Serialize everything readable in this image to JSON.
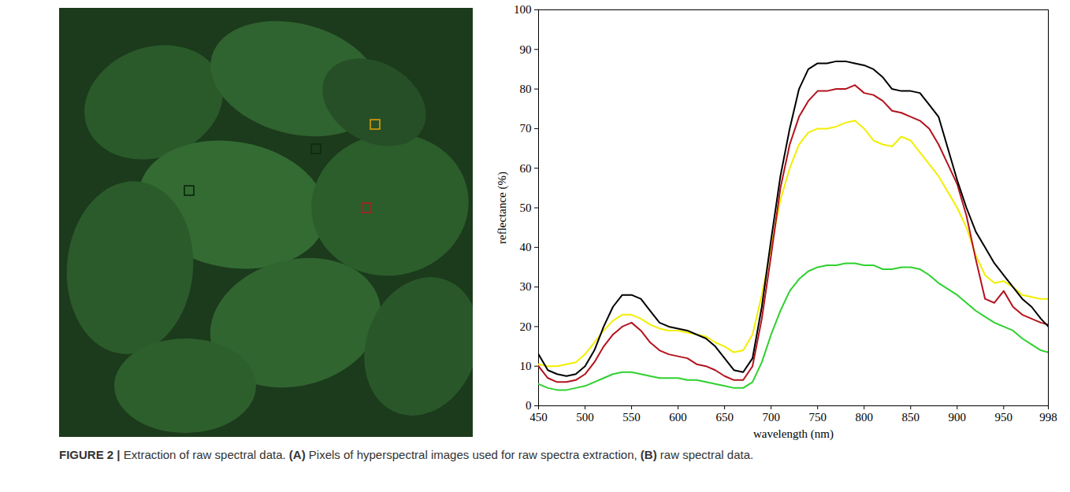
{
  "chart_data": {
    "type": "line",
    "x_label": "wavelength (nm)",
    "y_label": "reflectance (%)",
    "x": [
      450,
      460,
      470,
      480,
      490,
      500,
      510,
      520,
      530,
      540,
      550,
      560,
      570,
      580,
      590,
      600,
      610,
      620,
      630,
      640,
      650,
      660,
      670,
      680,
      690,
      700,
      710,
      720,
      730,
      740,
      750,
      760,
      770,
      780,
      790,
      800,
      810,
      820,
      830,
      840,
      850,
      860,
      870,
      880,
      890,
      900,
      910,
      920,
      930,
      940,
      950,
      960,
      970,
      980,
      990,
      998
    ],
    "xlim": [
      450,
      998
    ],
    "xticks": [
      450,
      500,
      550,
      600,
      650,
      700,
      750,
      800,
      850,
      900,
      950,
      998
    ],
    "ylim": [
      0,
      100
    ],
    "yticks": [
      0,
      10,
      20,
      30,
      40,
      50,
      60,
      70,
      80,
      90,
      100
    ],
    "grid": false,
    "series": [
      {
        "color": "#2ed12e",
        "values": [
          5.5,
          4.5,
          4,
          4,
          4.5,
          5,
          6,
          7,
          8,
          8.5,
          8.5,
          8,
          7.5,
          7,
          7,
          7,
          6.5,
          6.5,
          6,
          5.5,
          5,
          4.5,
          4.5,
          6,
          11,
          18,
          24,
          29,
          32,
          34,
          35,
          35.5,
          35.5,
          36,
          36,
          35.5,
          35.5,
          34.5,
          34.5,
          35,
          35,
          34.5,
          33,
          31,
          29.5,
          28,
          26,
          24,
          22.5,
          21,
          20,
          19,
          17,
          15.5,
          14,
          13.5
        ]
      },
      {
        "color": "#f2ee00",
        "values": [
          10.5,
          10,
          10,
          10.5,
          11,
          13,
          16,
          19,
          21.5,
          23,
          23,
          22,
          20.5,
          19.5,
          19,
          19,
          18.5,
          18,
          17.5,
          16,
          15,
          13.5,
          14,
          18,
          28,
          40,
          52,
          60,
          66,
          69,
          70,
          70,
          70.5,
          71.5,
          72,
          70,
          67,
          66,
          65.5,
          68,
          67,
          64,
          61,
          58,
          54,
          50,
          45,
          38,
          33,
          31,
          31.5,
          30,
          28,
          27.5,
          27,
          27
        ]
      },
      {
        "color": "#b3121c",
        "values": [
          10,
          7,
          6,
          6,
          6.5,
          8,
          11,
          15,
          18,
          20,
          21,
          19,
          16,
          14,
          13,
          12.5,
          12,
          10.5,
          10,
          9,
          7.5,
          6.5,
          6.5,
          10,
          22,
          38,
          55,
          66,
          73,
          77,
          79.5,
          79.5,
          80,
          80,
          81,
          79,
          78.5,
          77,
          74.5,
          74,
          73,
          72,
          70,
          66,
          61,
          56,
          48,
          37,
          27,
          26,
          29,
          25,
          23,
          22,
          21,
          20.5
        ]
      },
      {
        "color": "#000000",
        "values": [
          13,
          9,
          8,
          7.5,
          8,
          10,
          14,
          20,
          25,
          28,
          28,
          27,
          24,
          21,
          20,
          19.5,
          19,
          18,
          17,
          15,
          12,
          9,
          8.5,
          12,
          25,
          42,
          58,
          70,
          80,
          85,
          86.5,
          86.5,
          87,
          87,
          86.5,
          86,
          85,
          83,
          80,
          79.5,
          79.5,
          79,
          76,
          73,
          65,
          57,
          50,
          44,
          40,
          36,
          33,
          30,
          27,
          25,
          22,
          20
        ]
      }
    ]
  },
  "caption": [
    "FIGURE 2 | ",
    "Extraction of raw spectral data. ",
    "(A)",
    " Pixels of hyperspectral images used for raw spectra extraction, ",
    "(B)",
    " raw spectral data."
  ]
}
